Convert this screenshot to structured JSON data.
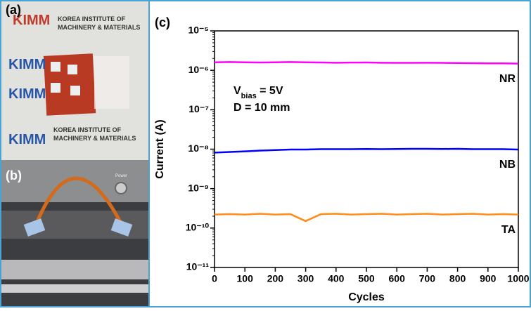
{
  "panels": {
    "a": {
      "label": "(a)",
      "logo": "KIMM",
      "line1": "KOREA INSTITUTE OF",
      "line2": "MACHINERY & MATERIALS"
    },
    "b": {
      "label": "(b)",
      "button": "Power"
    }
  },
  "chart_data": {
    "type": "line",
    "panel_label": "(c)",
    "x_label": "Cycles",
    "y_label": "Current (A)",
    "log_y": true,
    "xlim": [
      0,
      1000
    ],
    "ylim": [
      1e-11,
      1e-05
    ],
    "xticks": [
      0,
      100,
      200,
      300,
      400,
      500,
      600,
      700,
      800,
      900,
      1000
    ],
    "yticks": [
      {
        "value": 1e-05,
        "label": "10⁻⁵"
      },
      {
        "value": 1e-06,
        "label": "10⁻⁶"
      },
      {
        "value": 1e-07,
        "label": "10⁻⁷"
      },
      {
        "value": 1e-08,
        "label": "10⁻⁸"
      },
      {
        "value": 1e-09,
        "label": "10⁻⁹"
      },
      {
        "value": 1e-10,
        "label": "10⁻¹⁰"
      },
      {
        "value": 1e-11,
        "label": "10⁻¹¹"
      }
    ],
    "annotations": [
      {
        "text": "V",
        "sub": "bias",
        "rest": " = 5V"
      },
      {
        "text": "D = 10 mm"
      }
    ],
    "x": [
      0,
      50,
      100,
      150,
      200,
      250,
      300,
      350,
      400,
      450,
      500,
      550,
      600,
      650,
      700,
      750,
      800,
      850,
      900,
      950,
      1000
    ],
    "series": [
      {
        "name": "NR",
        "color": "#ff00ff",
        "values": [
          1.6e-06,
          1.62e-06,
          1.6e-06,
          1.58e-06,
          1.6e-06,
          1.62e-06,
          1.6e-06,
          1.58e-06,
          1.56e-06,
          1.57e-06,
          1.58e-06,
          1.56e-06,
          1.55e-06,
          1.55e-06,
          1.56e-06,
          1.55e-06,
          1.53e-06,
          1.52e-06,
          1.5e-06,
          1.5e-06,
          1.48e-06
        ]
      },
      {
        "name": "NB",
        "color": "#0000ff",
        "values": [
          8.2e-09,
          8.5e-09,
          8.8e-09,
          9.2e-09,
          9.5e-09,
          9.8e-09,
          9.8e-09,
          1e-08,
          1e-08,
          1e-08,
          1.01e-08,
          1e-08,
          1.01e-08,
          1.02e-08,
          1.02e-08,
          1.01e-08,
          1.02e-08,
          1e-08,
          1e-08,
          1e-08,
          9.8e-09
        ]
      },
      {
        "name": "TA",
        "color": "#ff8c1a",
        "values": [
          2.2e-10,
          2.25e-10,
          2.2e-10,
          2.3e-10,
          2.2e-10,
          2.25e-10,
          1.5e-10,
          2.25e-10,
          2.3e-10,
          2.2e-10,
          2.25e-10,
          2.3e-10,
          2.2e-10,
          2.25e-10,
          2.3e-10,
          2.2e-10,
          2.25e-10,
          2.3e-10,
          2.2e-10,
          2.25e-10,
          2.2e-10
        ]
      }
    ]
  }
}
